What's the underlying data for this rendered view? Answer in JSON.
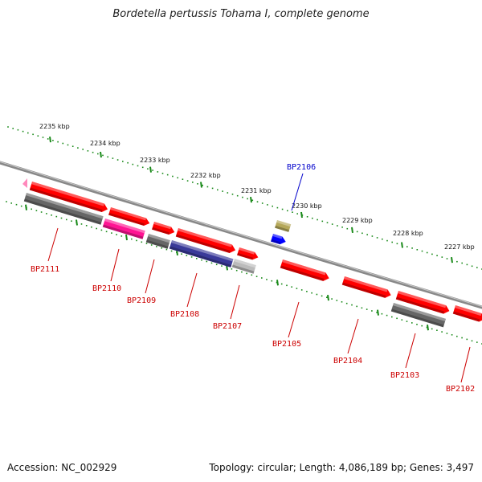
{
  "title": "Bordetella pertussis Tohama I, complete genome",
  "accession": "Accession: NC_002929",
  "topology": "Topology: circular; Length: 4,086,189 bp; Genes: 3,497",
  "colors": {
    "forward": "#ff0000",
    "reverse_gray": "#666666",
    "magenta": "#ff1493",
    "purple": "#3a3a99",
    "light_gray": "#bbbbbb",
    "khaki": "#b5a85a",
    "blue": "#0000ff",
    "pink": "#ff88bb",
    "label_red": "#cc0000",
    "label_blue": "#0000cc",
    "ruler": "#1a8a1a",
    "backbone": "#888888"
  },
  "kbp_labels": [
    "2235 kbp",
    "2234 kbp",
    "2233 kbp",
    "2232 kbp",
    "2231 kbp",
    "2230 kbp",
    "2229 kbp",
    "2228 kbp",
    "2227 kbp"
  ],
  "gene_labels": [
    "BP2111",
    "BP2110",
    "BP2109",
    "BP2108",
    "BP2107",
    "BP2106",
    "BP2105",
    "BP2104",
    "BP2103",
    "BP2102"
  ]
}
